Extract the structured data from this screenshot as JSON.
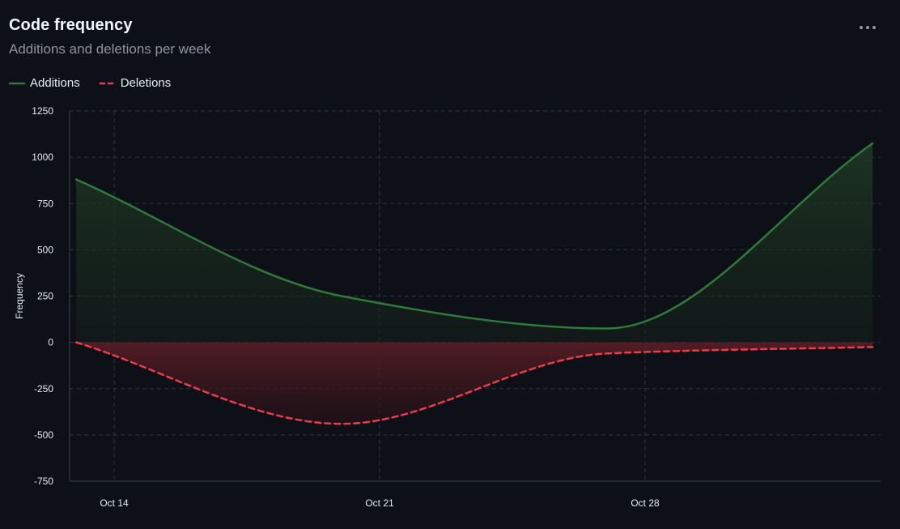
{
  "header": {
    "title": "Code frequency",
    "subtitle": "Additions and deletions per week",
    "menu_icon": "kebab-horizontal-icon"
  },
  "colors": {
    "additions": "#2f7a3a",
    "deletions": "#f0394a",
    "grid": "#30363d",
    "axis_text": "#e6edf3"
  },
  "chart_data": {
    "type": "area",
    "title": "",
    "xlabel": "",
    "ylabel": "Frequency",
    "ylim": [
      -750,
      1250
    ],
    "yticks": [
      1250,
      1000,
      750,
      500,
      250,
      0,
      -250,
      -500,
      -750
    ],
    "x_ticks": [
      "Oct 14",
      "Oct 21",
      "Oct 28"
    ],
    "x_tick_dates": [
      "2024-10-14",
      "2024-10-21",
      "2024-10-28"
    ],
    "x": [
      "2024-10-13",
      "2024-10-20",
      "2024-10-27",
      "2024-11-03"
    ],
    "grid": true,
    "legend_position": "top-left",
    "series": [
      {
        "name": "Additions",
        "style": "solid",
        "values": [
          880,
          250,
          75,
          1075
        ]
      },
      {
        "name": "Deletions",
        "style": "dashed",
        "values": [
          0,
          -440,
          -60,
          -25
        ]
      }
    ]
  }
}
